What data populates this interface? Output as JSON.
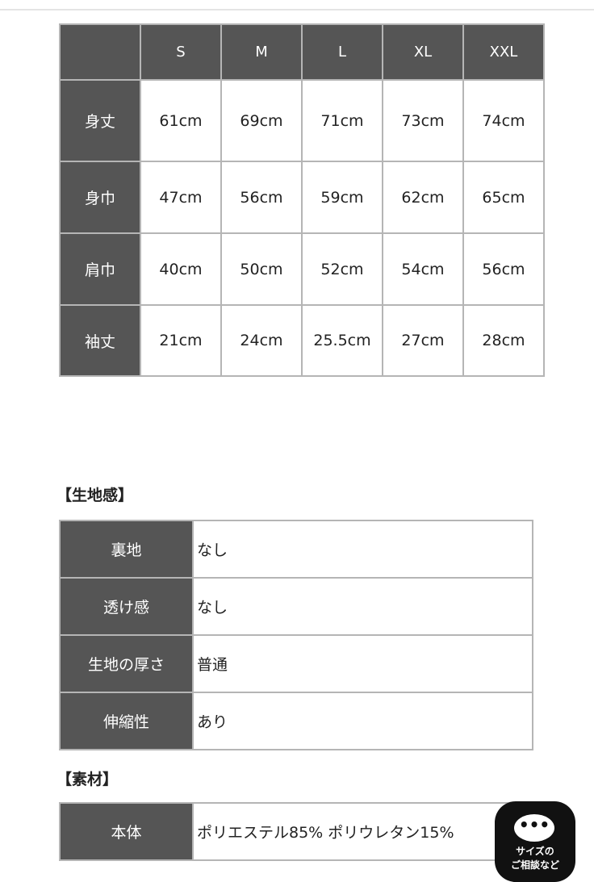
{
  "size_table": {
    "headers": [
      "",
      "S",
      "M",
      "L",
      "XL",
      "XXL"
    ],
    "rows": [
      {
        "label": "身丈",
        "values": [
          "61cm",
          "69cm",
          "71cm",
          "73cm",
          "74cm"
        ]
      },
      {
        "label": "身巾",
        "values": [
          "47cm",
          "56cm",
          "59cm",
          "62cm",
          "65cm"
        ]
      },
      {
        "label": "肩巾",
        "values": [
          "40cm",
          "50cm",
          "52cm",
          "54cm",
          "56cm"
        ]
      },
      {
        "label": "袖丈",
        "values": [
          "21cm",
          "24cm",
          "25.5cm",
          "27cm",
          "28cm"
        ]
      }
    ]
  },
  "fabric": {
    "heading": "【生地感】",
    "rows": [
      {
        "label": "裏地",
        "value": "なし"
      },
      {
        "label": "透け感",
        "value": "なし"
      },
      {
        "label": "生地の厚さ",
        "value": "普通"
      },
      {
        "label": "伸縮性",
        "value": "あり"
      }
    ]
  },
  "material": {
    "heading": "【素材】",
    "rows": [
      {
        "label": "本体",
        "value": "ポリエステル85% ポリウレタン15%"
      }
    ]
  },
  "chat_button": {
    "line1": "サイズの",
    "line2": "ご相談など",
    "icon": "chat-bubble-ellipsis-icon"
  }
}
